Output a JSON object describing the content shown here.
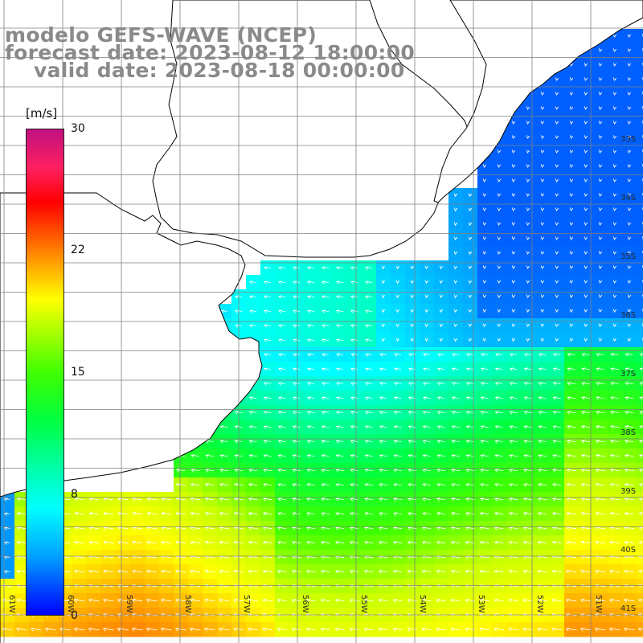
{
  "title": {
    "model": "modelo GEFS-WAVE (NCEP)",
    "forecast": "forecast date: 2023-08-12 18:00:00",
    "valid": "valid date: 2023-08-18 00:00:00"
  },
  "colorbar": {
    "unit": "[m/s]",
    "ticks": [
      "30",
      "22",
      "15",
      "8",
      "0"
    ],
    "colors": [
      "#0000ff",
      "#00a0ff",
      "#00ffff",
      "#00ff40",
      "#40ff00",
      "#ffff00",
      "#ff8000",
      "#ff0000",
      "#c01080"
    ]
  },
  "lat_labels": [
    "33S",
    "34S",
    "35S",
    "36S",
    "37S",
    "38S",
    "39S",
    "40S",
    "41S"
  ],
  "lon_labels": [
    "61W",
    "60W",
    "59W",
    "58W",
    "57W",
    "56W",
    "55W",
    "54W",
    "53W",
    "52W",
    "51W"
  ],
  "map": {
    "land_color": "#ffffff",
    "coast_color": "#000000",
    "grid_color": "#808080",
    "arrow_color": "#ffffff",
    "wind_direction": "from east-southeast"
  }
}
